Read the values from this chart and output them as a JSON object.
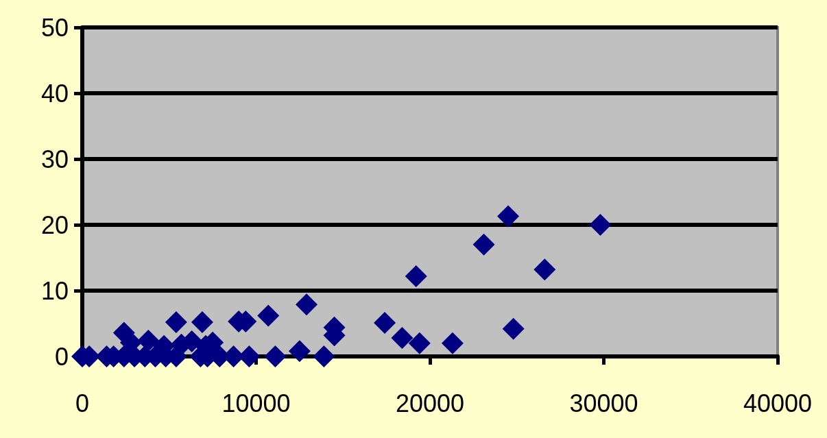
{
  "chart_data": {
    "type": "scatter",
    "marker": "diamond",
    "grid": "y",
    "xlim": [
      0,
      40000
    ],
    "xticks": [
      0,
      10000,
      20000,
      30000,
      40000
    ],
    "ylim": [
      0,
      50
    ],
    "yticks": [
      0,
      10,
      20,
      30,
      40,
      50
    ],
    "series": [
      {
        "color": "#000080",
        "x": [
          24500,
          29800,
          23100,
          26600,
          19200,
          24800,
          21300,
          19400,
          18400,
          17400,
          14500,
          14500,
          13900,
          12900,
          12500,
          11100,
          10700,
          9600,
          9400,
          9000,
          8700,
          7900,
          5400,
          6900,
          2400,
          6300,
          0,
          400,
          1400,
          1800,
          2400,
          3000,
          3600,
          4200,
          4800,
          5400,
          6800,
          7200,
          3800,
          4700,
          5700,
          2800,
          7100,
          7500
        ],
        "values": [
          21.3,
          20,
          17,
          13.2,
          12.2,
          4.2,
          2,
          2,
          2.8,
          5.1,
          4.4,
          3.2,
          0,
          7.9,
          0.8,
          0,
          6.2,
          0,
          5.3,
          5.3,
          0,
          0,
          5.2,
          5.2,
          3.6,
          2.3,
          0,
          0,
          0,
          0,
          0,
          0,
          0,
          0,
          0,
          0,
          0,
          0,
          2.4,
          1.6,
          1.8,
          2.1,
          1.6,
          2.1
        ]
      }
    ]
  }
}
